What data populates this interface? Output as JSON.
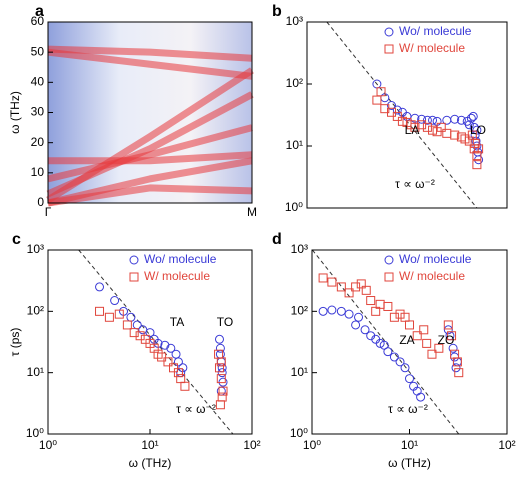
{
  "chart_data": [
    {
      "type": "heatmap",
      "label": "a",
      "y_label": "ω (THz)",
      "categories": [
        "Γ",
        null,
        "M"
      ],
      "ylim": [
        0,
        60
      ],
      "yticks": [
        0,
        10,
        20,
        30,
        40,
        50,
        60
      ],
      "series": [
        {
          "color": "#e8383d",
          "values": [
            51,
            50,
            48
          ]
        },
        {
          "color": "#e8383d",
          "values": [
            50,
            46,
            42
          ]
        },
        {
          "color": "#e8383d",
          "values": [
            1,
            22,
            44
          ]
        },
        {
          "color": "#e8383d",
          "values": [
            3,
            18,
            36
          ]
        },
        {
          "color": "#e8383d",
          "values": [
            8,
            16,
            25
          ]
        },
        {
          "color": "#e8383d",
          "values": [
            14,
            14,
            16
          ]
        },
        {
          "color": "#e8383d",
          "values": [
            0,
            8,
            14
          ]
        },
        {
          "color": "#e8383d",
          "values": [
            0,
            5,
            4
          ]
        }
      ]
    },
    {
      "type": "scatter",
      "label": "b",
      "log_x": true,
      "log_y": true,
      "xlim": [
        1,
        100
      ],
      "ylim": [
        1,
        1000
      ],
      "yticks": [
        {
          "value": 1,
          "label": "10⁰"
        },
        {
          "value": 10,
          "label": "10¹"
        },
        {
          "value": 100,
          "label": "10²"
        },
        {
          "value": 1000,
          "label": "10³"
        }
      ],
      "annotations": [
        "LA",
        "LO",
        "τ ∝ ω⁻²"
      ],
      "reference_line": {
        "x": [
          1.58,
          50
        ],
        "y": [
          1000,
          1
        ]
      },
      "series": [
        {
          "name": "Wo/ molecule",
          "color": "#3a3ad6",
          "marker": "circle",
          "x": [
            5,
            6,
            7,
            8,
            9,
            10,
            12,
            14,
            16,
            18,
            20,
            25,
            30,
            35,
            40,
            42,
            44,
            46,
            47,
            48,
            49,
            50,
            50,
            51,
            52
          ],
          "values": [
            100,
            60,
            45,
            38,
            35,
            30,
            28,
            27,
            26,
            26,
            25,
            26,
            27,
            26,
            25,
            22,
            28,
            30,
            20,
            15,
            12,
            18,
            10,
            8,
            6
          ]
        },
        {
          "name": "W/ molecule",
          "color": "#e0463c",
          "marker": "square",
          "x": [
            5,
            5.5,
            6,
            7,
            8,
            9,
            10,
            11,
            12,
            14,
            16,
            18,
            20,
            22,
            25,
            30,
            35,
            38,
            42,
            45,
            47,
            48,
            50,
            50,
            52
          ],
          "values": [
            55,
            75,
            40,
            35,
            30,
            25,
            24,
            22,
            20,
            22,
            20,
            18,
            17,
            20,
            16,
            15,
            14,
            13,
            12,
            15,
            9,
            11,
            7,
            5,
            9
          ]
        }
      ]
    },
    {
      "type": "scatter",
      "label": "c",
      "log_x": true,
      "log_y": true,
      "x_label": "ω (THz)",
      "y_label": "τ (ps)",
      "xlim": [
        1,
        100
      ],
      "ylim": [
        1,
        1000
      ],
      "xticks": [
        {
          "value": 1,
          "label": "10⁰"
        },
        {
          "value": 10,
          "label": "10¹"
        },
        {
          "value": 100,
          "label": "10²"
        }
      ],
      "yticks": [
        {
          "value": 1,
          "label": "10⁰"
        },
        {
          "value": 10,
          "label": "10¹"
        },
        {
          "value": 100,
          "label": "10²"
        },
        {
          "value": 1000,
          "label": "10³"
        }
      ],
      "annotations": [
        "TA",
        "TO",
        "τ ∝ ω⁻²"
      ],
      "reference_line": {
        "x": [
          2,
          65
        ],
        "y": [
          1000,
          1
        ]
      },
      "series": [
        {
          "name": "Wo/ molecule",
          "color": "#3a3ad6",
          "marker": "circle",
          "x": [
            3.2,
            4.5,
            5.5,
            6.5,
            7.5,
            8.5,
            10,
            11,
            12,
            14,
            16,
            18,
            19,
            20,
            21,
            48,
            49,
            50,
            51,
            52,
            50,
            49,
            51
          ],
          "values": [
            250,
            150,
            100,
            80,
            60,
            50,
            45,
            35,
            30,
            28,
            25,
            20,
            15,
            10,
            12,
            35,
            25,
            15,
            10,
            7,
            5,
            20,
            12
          ]
        },
        {
          "name": "W/ molecule",
          "color": "#e0463c",
          "marker": "square",
          "x": [
            3.2,
            4,
            5,
            6,
            7,
            8,
            9,
            10,
            11,
            12,
            13,
            15,
            17,
            19,
            20,
            22,
            47,
            48,
            50,
            52,
            49,
            51,
            50
          ],
          "values": [
            100,
            80,
            90,
            60,
            45,
            40,
            35,
            30,
            25,
            20,
            18,
            15,
            12,
            10,
            8,
            6,
            20,
            12,
            8,
            5,
            3,
            4,
            15
          ]
        }
      ]
    },
    {
      "type": "scatter",
      "label": "d",
      "log_x": true,
      "log_y": true,
      "x_label": "ω (THz)",
      "xlim": [
        1,
        100
      ],
      "ylim": [
        1,
        1000
      ],
      "xticks": [
        {
          "value": 1,
          "label": "10⁰"
        },
        {
          "value": 10,
          "label": "10¹"
        },
        {
          "value": 100,
          "label": "10²"
        }
      ],
      "yticks": [
        {
          "value": 1,
          "label": "10⁰"
        },
        {
          "value": 10,
          "label": "10¹"
        },
        {
          "value": 100,
          "label": "10²"
        },
        {
          "value": 1000,
          "label": "10³"
        }
      ],
      "annotations": [
        "ZA",
        "ZO",
        "τ ∝ ω⁻²"
      ],
      "reference_line": {
        "x": [
          1.01,
          32
        ],
        "y": [
          1000,
          1
        ]
      },
      "series": [
        {
          "name": "Wo/ molecule",
          "color": "#3a3ad6",
          "marker": "circle",
          "x": [
            1.3,
            1.6,
            2,
            2.4,
            2.8,
            3,
            3.5,
            4,
            4.5,
            5,
            5.5,
            6,
            7,
            8,
            9,
            10,
            11,
            12,
            13,
            25,
            26,
            28,
            29,
            30,
            31
          ],
          "values": [
            100,
            105,
            100,
            90,
            60,
            80,
            50,
            40,
            35,
            30,
            28,
            22,
            18,
            15,
            12,
            8,
            6,
            5,
            4,
            50,
            40,
            25,
            18,
            12,
            15
          ]
        },
        {
          "name": "W/ molecule",
          "color": "#e0463c",
          "marker": "square",
          "x": [
            1.3,
            1.6,
            2,
            2.4,
            2.8,
            3.2,
            3.6,
            4,
            4.5,
            5,
            6,
            7,
            8,
            9,
            10,
            12,
            14,
            15,
            17,
            20,
            25,
            27,
            29,
            31,
            32
          ],
          "values": [
            350,
            300,
            250,
            200,
            250,
            280,
            220,
            150,
            100,
            130,
            120,
            80,
            90,
            80,
            60,
            40,
            50,
            30,
            20,
            25,
            60,
            40,
            20,
            15,
            10
          ]
        }
      ]
    }
  ]
}
